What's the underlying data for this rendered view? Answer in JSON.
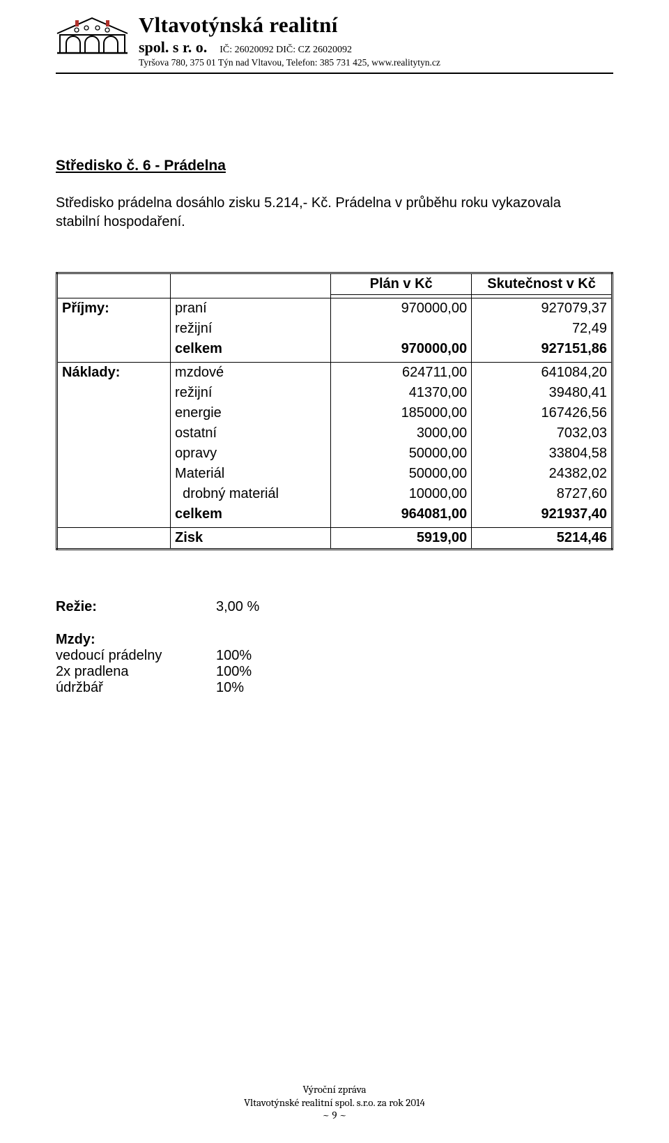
{
  "header": {
    "company_name": "Vltavotýnská realitní",
    "company_form": "spol. s r. o.",
    "ids": "IČ: 26020092  DIČ: CZ 26020092",
    "address": "Tyršova 780, 375 01 Týn nad Vltavou, Telefon: 385 731 425, www.realitytyn.cz"
  },
  "section": {
    "title": "Středisko č. 6  -  Prádelna",
    "intro_line1": "Středisko prádelna dosáhlo zisku 5.214,- Kč. Prádelna v průběhu roku vykazovala",
    "intro_line2": "stabilní hospodaření."
  },
  "table": {
    "col_plan": "Plán v Kč",
    "col_actual": "Skutečnost v Kč",
    "groups": [
      {
        "label": "Příjmy:",
        "rows": [
          {
            "cat": "praní",
            "plan": "970000,00",
            "actual": "927079,37",
            "bold": false
          },
          {
            "cat": "režijní",
            "plan": "",
            "actual": "72,49",
            "bold": false
          },
          {
            "cat": "celkem",
            "plan": "970000,00",
            "actual": "927151,86",
            "bold": true
          }
        ]
      },
      {
        "label": "Náklady:",
        "rows": [
          {
            "cat": "mzdové",
            "plan": "624711,00",
            "actual": "641084,20",
            "bold": false
          },
          {
            "cat": "režijní",
            "plan": "41370,00",
            "actual": "39480,41",
            "bold": false
          },
          {
            "cat": "energie",
            "plan": "185000,00",
            "actual": "167426,56",
            "bold": false
          },
          {
            "cat": "ostatní",
            "plan": "3000,00",
            "actual": "7032,03",
            "bold": false
          },
          {
            "cat": "opravy",
            "plan": "50000,00",
            "actual": "33804,58",
            "bold": false
          },
          {
            "cat": "Materiál",
            "plan": "50000,00",
            "actual": "24382,02",
            "bold": false
          },
          {
            "cat": "drobný materiál",
            "plan": "10000,00",
            "actual": "8727,60",
            "bold": false,
            "indent": true
          },
          {
            "cat": "celkem",
            "plan": "964081,00",
            "actual": "921937,40",
            "bold": true
          }
        ]
      },
      {
        "label": "",
        "rows": [
          {
            "cat": "Zisk",
            "plan": "5919,00",
            "actual": "5214,46",
            "bold": true
          }
        ]
      }
    ]
  },
  "info": {
    "rezie_label": "Režie:",
    "rezie_value": "3,00 %",
    "mzdy_label": "Mzdy:",
    "items": [
      {
        "label": "vedoucí prádelny",
        "value": "100%"
      },
      {
        "label": "2x pradlena",
        "value": "100%"
      },
      {
        "label": "údržbář",
        "value": "10%"
      }
    ]
  },
  "footer": {
    "line1": "Výroční zpráva",
    "line2": "Vltavotýnské realitní spol.  s.r.o.  za rok 2014",
    "line3": "~ 9 ~"
  }
}
